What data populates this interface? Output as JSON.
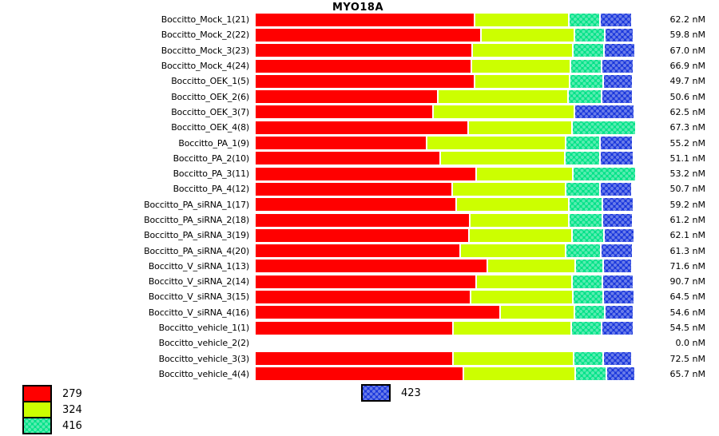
{
  "title": "MYO18A",
  "unit": "nM",
  "legend": [
    {
      "label": "279",
      "color": "#ff0000",
      "patterned": false
    },
    {
      "label": "324",
      "color": "#ccff00",
      "patterned": false
    },
    {
      "label": "416",
      "color": "#00e287",
      "patterned": true
    },
    {
      "label": "423",
      "color": "#1b38dc",
      "patterned": true
    }
  ],
  "chart_data": {
    "type": "bar",
    "orientation": "horizontal",
    "stacked": true,
    "title": "MYO18A",
    "series_names": [
      "279",
      "324",
      "416",
      "423"
    ],
    "series_colors": [
      "#ff0000",
      "#ccff00",
      "#00e287",
      "#1b38dc"
    ],
    "segment_unit": "percent_of_bar_area",
    "rows": [
      {
        "label": "Boccitto_Mock_1(21)",
        "value_nM": 62.2,
        "display_value": "62.2 nM",
        "segments": [
          56.9,
          24.4,
          8.1,
          8.3
        ]
      },
      {
        "label": "Boccitto_Mock_2(22)",
        "value_nM": 59.8,
        "display_value": "59.8 nM",
        "segments": [
          58.6,
          24.2,
          7.9,
          7.5
        ]
      },
      {
        "label": "Boccitto_Mock_3(23)",
        "value_nM": 67.0,
        "display_value": "67.0 nM",
        "segments": [
          56.3,
          26.1,
          8.1,
          8.1
        ]
      },
      {
        "label": "Boccitto_Mock_4(24)",
        "value_nM": 66.9,
        "display_value": "66.9 nM",
        "segments": [
          56.1,
          25.7,
          8.1,
          8.3
        ]
      },
      {
        "label": "Boccitto_OEK_1(5)",
        "value_nM": 49.7,
        "display_value": "49.7 nM",
        "segments": [
          56.9,
          24.6,
          8.7,
          7.7
        ]
      },
      {
        "label": "Boccitto_OEK_2(6)",
        "value_nM": 50.6,
        "display_value": "50.6 nM",
        "segments": [
          47.4,
          33.7,
          8.7,
          8.1
        ]
      },
      {
        "label": "Boccitto_OEK_3(7)",
        "value_nM": 62.5,
        "display_value": "62.5 nM",
        "segments": [
          46.2,
          36.6,
          0,
          15.5
        ]
      },
      {
        "label": "Boccitto_OEK_4(8)",
        "value_nM": 67.3,
        "display_value": "67.3 nM",
        "segments": [
          55.3,
          26.9,
          16.6,
          0
        ]
      },
      {
        "label": "Boccitto_PA_1(9)",
        "value_nM": 55.2,
        "display_value": "55.2 nM",
        "segments": [
          44.5,
          36.0,
          8.9,
          8.5
        ]
      },
      {
        "label": "Boccitto_PA_2(10)",
        "value_nM": 51.1,
        "display_value": "51.1 nM",
        "segments": [
          48.0,
          32.3,
          9.1,
          8.7
        ]
      },
      {
        "label": "Boccitto_PA_3(11)",
        "value_nM": 53.2,
        "display_value": "53.2 nM",
        "segments": [
          57.3,
          25.1,
          16.4,
          0
        ]
      },
      {
        "label": "Boccitto_PA_4(12)",
        "value_nM": 50.7,
        "display_value": "50.7 nM",
        "segments": [
          51.1,
          29.4,
          8.9,
          8.3
        ]
      },
      {
        "label": "Boccitto_PA_siRNA_1(17)",
        "value_nM": 59.2,
        "display_value": "59.2 nM",
        "segments": [
          52.2,
          29.2,
          8.7,
          8.1
        ]
      },
      {
        "label": "Boccitto_PA_siRNA_2(18)",
        "value_nM": 61.2,
        "display_value": "61.2 nM",
        "segments": [
          55.7,
          25.7,
          8.7,
          7.9
        ]
      },
      {
        "label": "Boccitto_PA_siRNA_3(19)",
        "value_nM": 62.1,
        "display_value": "62.1 nM",
        "segments": [
          55.5,
          26.7,
          8.3,
          7.9
        ]
      },
      {
        "label": "Boccitto_PA_siRNA_4(20)",
        "value_nM": 61.3,
        "display_value": "61.3 nM",
        "segments": [
          53.2,
          27.3,
          9.1,
          8.3
        ]
      },
      {
        "label": "Boccitto_V_siRNA_1(13)",
        "value_nM": 71.6,
        "display_value": "71.6 nM",
        "segments": [
          60.2,
          22.8,
          7.2,
          7.5
        ]
      },
      {
        "label": "Boccitto_V_siRNA_2(14)",
        "value_nM": 90.7,
        "display_value": "90.7 nM",
        "segments": [
          57.3,
          24.8,
          7.9,
          8.1
        ]
      },
      {
        "label": "Boccitto_V_siRNA_3(15)",
        "value_nM": 64.5,
        "display_value": "64.5 nM",
        "segments": [
          55.9,
          26.5,
          7.9,
          8.1
        ]
      },
      {
        "label": "Boccitto_V_siRNA_4(16)",
        "value_nM": 54.6,
        "display_value": "54.6 nM",
        "segments": [
          63.6,
          19.3,
          7.7,
          7.5
        ]
      },
      {
        "label": "Boccitto_vehicle_1(1)",
        "value_nM": 54.5,
        "display_value": "54.5 nM",
        "segments": [
          51.3,
          30.6,
          7.9,
          8.3
        ]
      },
      {
        "label": "Boccitto_vehicle_2(2)",
        "value_nM": 0.0,
        "display_value": "0.0 nM",
        "segments": [
          0,
          0,
          0,
          0
        ]
      },
      {
        "label": "Boccitto_vehicle_3(3)",
        "value_nM": 72.5,
        "display_value": "72.5 nM",
        "segments": [
          51.3,
          31.3,
          7.7,
          7.5
        ]
      },
      {
        "label": "Boccitto_vehicle_4(4)",
        "value_nM": 65.7,
        "display_value": "65.7 nM",
        "segments": [
          54.0,
          29.0,
          8.1,
          7.5
        ]
      }
    ]
  }
}
